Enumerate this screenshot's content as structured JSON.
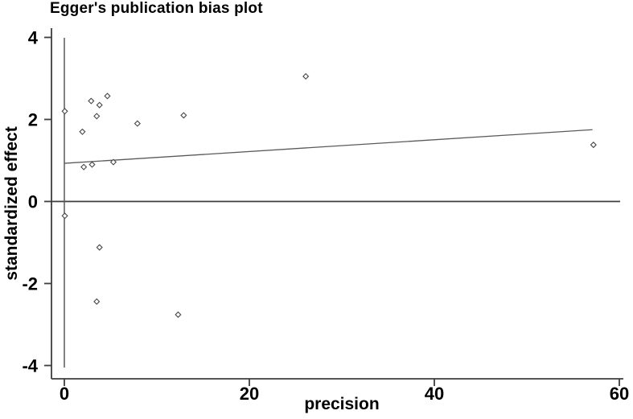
{
  "chart_data": {
    "type": "scatter",
    "title": "Egger's publication bias plot",
    "xlabel": "precision",
    "ylabel": "standardized effect",
    "xlim": [
      0,
      60
    ],
    "ylim": [
      -4,
      4
    ],
    "x_ticks": [
      "0",
      "20",
      "40",
      "60"
    ],
    "x_tick_values": [
      0,
      20,
      40,
      60
    ],
    "y_ticks": [
      "4",
      "2",
      "0",
      "-2",
      "-4"
    ],
    "y_tick_values": [
      4,
      2,
      0,
      -2,
      -4
    ],
    "grid": false,
    "legend": null,
    "points": [
      {
        "precision": 0.05,
        "effect": 2.2
      },
      {
        "precision": 0.05,
        "effect": -0.35
      },
      {
        "precision": 1.95,
        "effect": 1.7
      },
      {
        "precision": 2.1,
        "effect": 0.84
      },
      {
        "precision": 2.9,
        "effect": 2.45
      },
      {
        "precision": 3.0,
        "effect": 0.9
      },
      {
        "precision": 3.5,
        "effect": 2.08
      },
      {
        "precision": 3.8,
        "effect": 2.35
      },
      {
        "precision": 3.8,
        "effect": -1.12
      },
      {
        "precision": 3.5,
        "effect": -2.44
      },
      {
        "precision": 4.65,
        "effect": 2.57
      },
      {
        "precision": 5.3,
        "effect": 0.96
      },
      {
        "precision": 7.9,
        "effect": 1.9
      },
      {
        "precision": 12.9,
        "effect": 2.1
      },
      {
        "precision": 12.3,
        "effect": -2.76
      },
      {
        "precision": 26.1,
        "effect": 3.05
      },
      {
        "precision": 57.2,
        "effect": 1.38
      }
    ],
    "regression_line": {
      "x": [
        0,
        57.1
      ],
      "y": [
        0.93,
        1.75
      ]
    },
    "zero_line_y": 0,
    "vertical_line_x": 0,
    "colors": {
      "background": "#ffffff",
      "text": "#000000",
      "axis": "#3d3d3d",
      "zero_line": "#3d3d3d",
      "line": "#5a5a5a",
      "marker_stroke": "#474747",
      "marker_fill": "#ffffff"
    }
  }
}
